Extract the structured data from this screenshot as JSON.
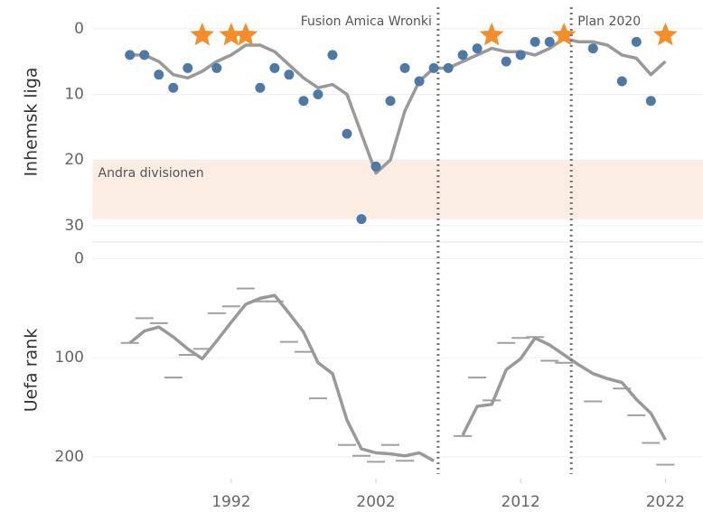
{
  "chart_data": [
    {
      "type": "line",
      "ylabel": "Inhemsk liga",
      "inverted": true,
      "xlim": [
        1982.8,
        2024.6
      ],
      "ylim": [
        -3,
        32.5
      ],
      "yticks": [
        0,
        10,
        20,
        30
      ],
      "grid": true,
      "band": {
        "label": "Andra divisionen",
        "range": [
          20,
          29
        ],
        "color": "#fbece4"
      },
      "annotations": [
        {
          "label": "Fusion Amica Wronki",
          "x": 2006.3,
          "side": "left"
        },
        {
          "label": "Plan 2020",
          "x": 2015.5,
          "side": "right"
        }
      ],
      "x": [
        1985,
        1986,
        1987,
        1988,
        1989,
        1990,
        1991,
        1992,
        1993,
        1994,
        1995,
        1996,
        1997,
        1998,
        1999,
        2000,
        2001,
        2002,
        2003,
        2004,
        2005,
        2006,
        2007,
        2008,
        2009,
        2010,
        2011,
        2012,
        2013,
        2014,
        2015,
        2016,
        2017,
        2018,
        2019,
        2020,
        2021,
        2022
      ],
      "series": [
        {
          "mark": "line",
          "color": "#999999",
          "values": [
            4,
            4,
            5,
            7,
            7.5,
            6.5,
            5,
            4,
            2.5,
            2.5,
            3.5,
            5.5,
            7.5,
            9,
            8.5,
            10,
            16,
            22,
            20,
            12.5,
            8,
            6,
            6,
            5,
            4,
            3,
            3.5,
            3.5,
            4,
            3,
            1.5,
            2,
            2,
            2.5,
            4,
            4.5,
            7,
            5
          ]
        },
        {
          "mark": "circle",
          "color": "#4e79a7",
          "values": [
            4,
            4,
            7,
            9,
            6,
            null,
            6,
            null,
            null,
            9,
            6,
            7,
            11,
            10,
            4,
            16,
            29,
            21,
            11,
            6,
            8,
            6,
            6,
            4,
            3,
            null,
            5,
            4,
            2,
            2,
            null,
            null,
            3,
            null,
            8,
            2,
            11,
            null
          ]
        },
        {
          "mark": "star",
          "color": "#f28e2b",
          "values": [
            null,
            null,
            null,
            null,
            null,
            1,
            null,
            1,
            1,
            null,
            null,
            null,
            null,
            null,
            null,
            null,
            null,
            null,
            null,
            null,
            null,
            null,
            null,
            null,
            null,
            1,
            null,
            null,
            null,
            null,
            1,
            null,
            null,
            null,
            null,
            null,
            null,
            1
          ]
        }
      ]
    },
    {
      "type": "line",
      "ylabel": "Uefa rank",
      "inverted": true,
      "xlim": [
        1982.8,
        2024.6
      ],
      "ylim": [
        -6,
        222
      ],
      "yticks": [
        0,
        100,
        200
      ],
      "xticks": [
        1992,
        2002,
        2012,
        2022
      ],
      "grid": true,
      "x": [
        1985,
        1986,
        1987,
        1988,
        1989,
        1990,
        1991,
        1992,
        1993,
        1994,
        1995,
        1996,
        1997,
        1998,
        1999,
        2000,
        2001,
        2002,
        2003,
        2004,
        2005,
        2006,
        2007,
        2008,
        2009,
        2010,
        2011,
        2012,
        2013,
        2014,
        2015,
        2016,
        2017,
        2018,
        2019,
        2020,
        2021,
        2022
      ],
      "series": [
        {
          "mark": "dash",
          "color": "#a0a0a0",
          "values": [
            85,
            60,
            65,
            120,
            97,
            91,
            55,
            48,
            30,
            43,
            43,
            84,
            94,
            141,
            null,
            188,
            199,
            205,
            188,
            204,
            null,
            null,
            null,
            179,
            120,
            143,
            85,
            80,
            79,
            103,
            105,
            null,
            144,
            null,
            131,
            158,
            186,
            208
          ]
        },
        {
          "mark": "line",
          "color": "#999999",
          "values": [
            85,
            73,
            69,
            79,
            91,
            101,
            83,
            64,
            46,
            40,
            37,
            55,
            74,
            105,
            116,
            163,
            192,
            196,
            197,
            199,
            196,
            204,
            null,
            178,
            149,
            147,
            112,
            101,
            80,
            87,
            97,
            107,
            116,
            121,
            125,
            142,
            156,
            183
          ]
        }
      ]
    }
  ]
}
